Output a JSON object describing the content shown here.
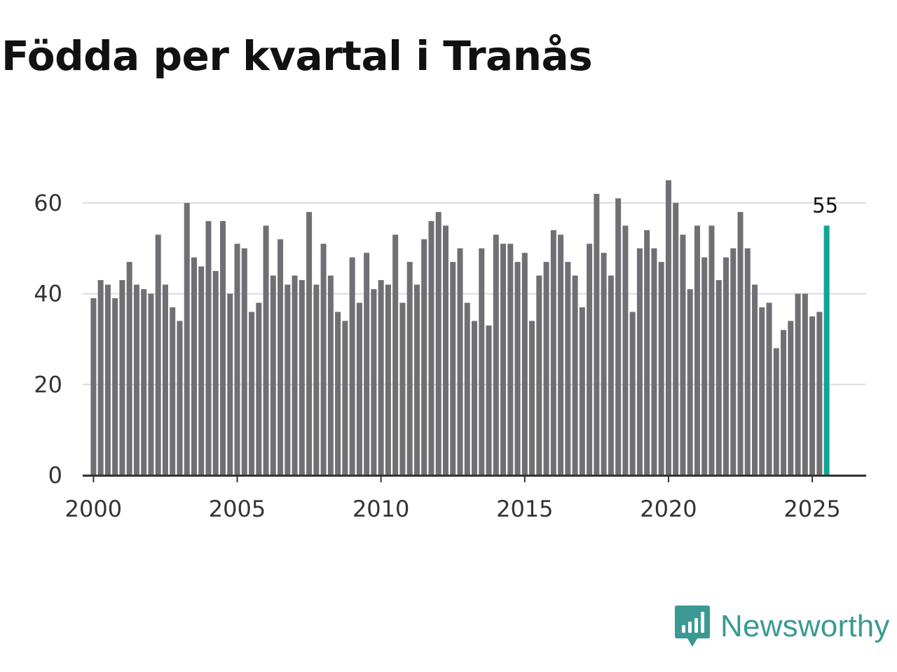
{
  "title": "Födda per kvartal i Tranås",
  "brand": {
    "name": "Newsworthy",
    "icon": "newsworthy-logo-icon",
    "color": "#3a9a93"
  },
  "colors": {
    "bar": "#706f74",
    "highlight": "#12a596",
    "grid": "#dcdcdc",
    "axis": "#333333"
  },
  "chart_data": {
    "type": "bar",
    "title": "Födda per kvartal i Tranås",
    "xlabel": "",
    "ylabel": "",
    "ylim": [
      0,
      70
    ],
    "xlim": [
      1999.625,
      2026.875
    ],
    "grid": true,
    "y_ticks": [
      0,
      20,
      40,
      60
    ],
    "x_ticks": [
      2000,
      2005,
      2010,
      2015,
      2020,
      2025
    ],
    "start": 2000,
    "period": "quarter",
    "values": [
      39,
      43,
      42,
      39,
      43,
      47,
      42,
      41,
      40,
      53,
      42,
      37,
      34,
      60,
      48,
      46,
      56,
      45,
      56,
      40,
      51,
      50,
      36,
      38,
      55,
      44,
      52,
      42,
      44,
      43,
      58,
      42,
      51,
      44,
      36,
      34,
      48,
      38,
      49,
      41,
      43,
      42,
      53,
      38,
      47,
      42,
      52,
      56,
      58,
      55,
      47,
      50,
      38,
      34,
      50,
      33,
      53,
      51,
      51,
      47,
      49,
      34,
      44,
      47,
      54,
      53,
      47,
      44,
      37,
      51,
      62,
      49,
      44,
      61,
      55,
      36,
      50,
      54,
      50,
      47,
      65,
      60,
      53,
      41,
      55,
      48,
      55,
      43,
      48,
      50,
      58,
      50,
      42,
      37,
      38,
      28,
      32,
      34,
      40,
      40,
      35,
      36,
      55
    ],
    "highlight": {
      "index": 102,
      "value": 55,
      "label": "55"
    }
  }
}
